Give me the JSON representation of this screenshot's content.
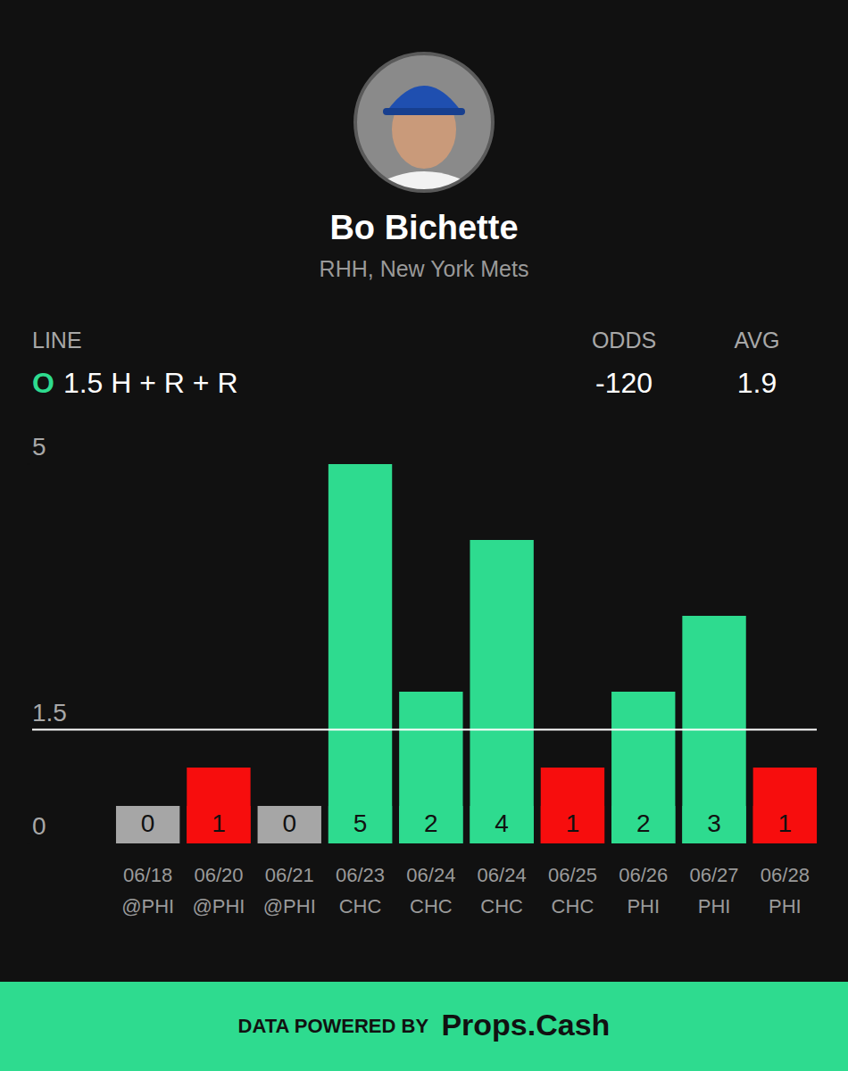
{
  "chart_data": {
    "type": "bar",
    "title": "Bo Bichette",
    "subtitle": "RHH, New York Mets",
    "line_label": "LINE",
    "line_side": "O",
    "line_text": "1.5 H + R + R",
    "odds_label": "ODDS",
    "odds": -120,
    "avg_label": "AVG",
    "avg": 1.9,
    "categories": [
      "06/18",
      "06/20",
      "06/21",
      "06/23",
      "06/24",
      "06/24",
      "06/25",
      "06/26",
      "06/27",
      "06/28"
    ],
    "opponents": [
      "@PHI",
      "@PHI",
      "@PHI",
      "CHC",
      "CHC",
      "CHC",
      "CHC",
      "PHI",
      "PHI",
      "PHI"
    ],
    "values": [
      0,
      1,
      0,
      5,
      2,
      4,
      1,
      2,
      3,
      1
    ],
    "colors": [
      "#a6a6a6",
      "#f70d0d",
      "#a6a6a6",
      "#2edb8f",
      "#2edb8f",
      "#2edb8f",
      "#f70d0d",
      "#2edb8f",
      "#2edb8f",
      "#f70d0d"
    ],
    "reference_line": 1.5,
    "ylim": [
      0,
      5
    ],
    "yticks": [
      0,
      1.5,
      5
    ],
    "grid": false,
    "data_labels": true,
    "footer_prefix": "DATA POWERED BY",
    "footer_brand": "Props.Cash"
  }
}
